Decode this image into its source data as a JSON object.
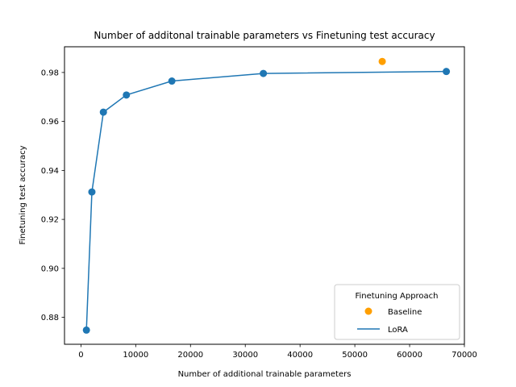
{
  "chart_data": {
    "type": "line",
    "title": "Number of additonal trainable parameters vs Finetuning test accuracy",
    "xlabel": "Number of additional trainable parameters",
    "ylabel": "Finetuning test accuracy",
    "xlim": [
      -3000,
      70000
    ],
    "ylim": [
      0.869,
      0.9905
    ],
    "xticks": [
      0,
      10000,
      20000,
      30000,
      40000,
      50000,
      60000,
      70000
    ],
    "yticks": [
      0.88,
      0.9,
      0.92,
      0.94,
      0.96,
      0.98
    ],
    "yticks_labels": [
      "0.88",
      "0.90",
      "0.92",
      "0.94",
      "0.96",
      "0.98"
    ],
    "grid": false,
    "legend": {
      "title": "Finetuning Approach",
      "placement": "lower-right",
      "entries": [
        "Baseline",
        "LoRA"
      ]
    },
    "series": [
      {
        "name": "Baseline",
        "kind": "scatter",
        "color": "#ff9f00",
        "x": [
          55000
        ],
        "y": [
          0.9845
        ]
      },
      {
        "name": "LoRA",
        "kind": "line-with-markers",
        "color": "#1f77b4",
        "x": [
          1000,
          2000,
          4100,
          8300,
          16600,
          33300,
          66700
        ],
        "y": [
          0.8748,
          0.9312,
          0.9638,
          0.9708,
          0.9765,
          0.9796,
          0.9804
        ]
      }
    ]
  }
}
